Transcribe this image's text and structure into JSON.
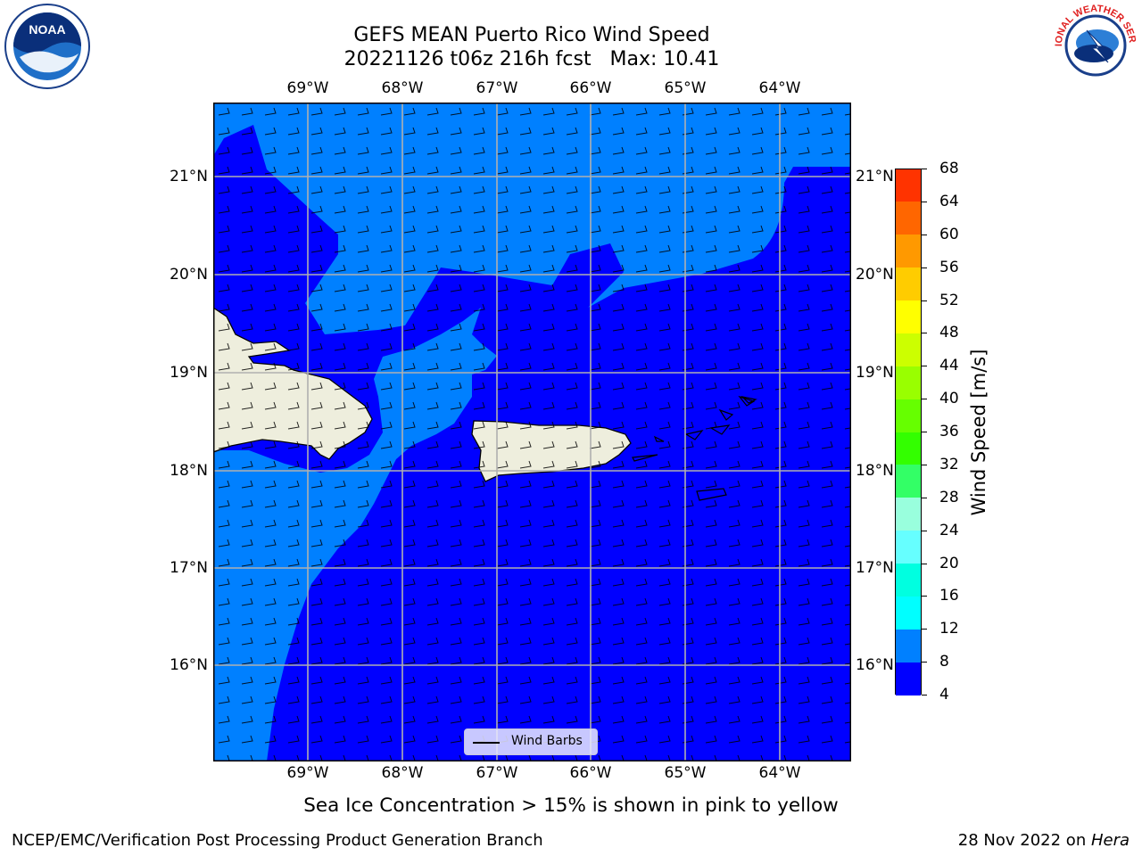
{
  "title": {
    "line1": "GEFS MEAN Puerto Rico Wind Speed",
    "line2": "20221126 t06z 216h fcst   Max: 10.41"
  },
  "logos": {
    "left": {
      "icon": "noaa-logo",
      "text": "NOAA"
    },
    "right": {
      "icon": "nws-logo",
      "text": "NATIONAL WEATHER SERVICE"
    }
  },
  "map": {
    "lon_ticks": [
      "69°W",
      "68°W",
      "67°W",
      "66°W",
      "65°W",
      "64°W"
    ],
    "lat_ticks": [
      "21°N",
      "20°N",
      "19°N",
      "18°N",
      "17°N",
      "16°N"
    ],
    "colors": {
      "speed_4_8": "#0000ff",
      "speed_8_12": "#0080ff",
      "land": "#eeeedd",
      "grid": "#b0b0b0"
    },
    "legend_label": "Wind Barbs"
  },
  "colorbar": {
    "label": "Wind Speed [m/s]",
    "ticks": [
      "68",
      "64",
      "60",
      "56",
      "52",
      "48",
      "44",
      "40",
      "36",
      "32",
      "28",
      "24",
      "20",
      "16",
      "12",
      "8",
      "4"
    ],
    "colors": [
      "#0000ff",
      "#0080ff",
      "#00ffff",
      "#00ffe0",
      "#66ffff",
      "#99ffdd",
      "#33ff66",
      "#33ff00",
      "#66ff00",
      "#99ff00",
      "#ccff00",
      "#ffff00",
      "#ffcc00",
      "#ff9900",
      "#ff6600",
      "#ff3300"
    ]
  },
  "caption": "Sea Ice Concentration > 15% is shown in pink to yellow",
  "footer": {
    "left": "NCEP/EMC/Verification Post Processing Product Generation Branch",
    "right_date": "28 Nov 2022 on ",
    "right_host": "Hera"
  }
}
